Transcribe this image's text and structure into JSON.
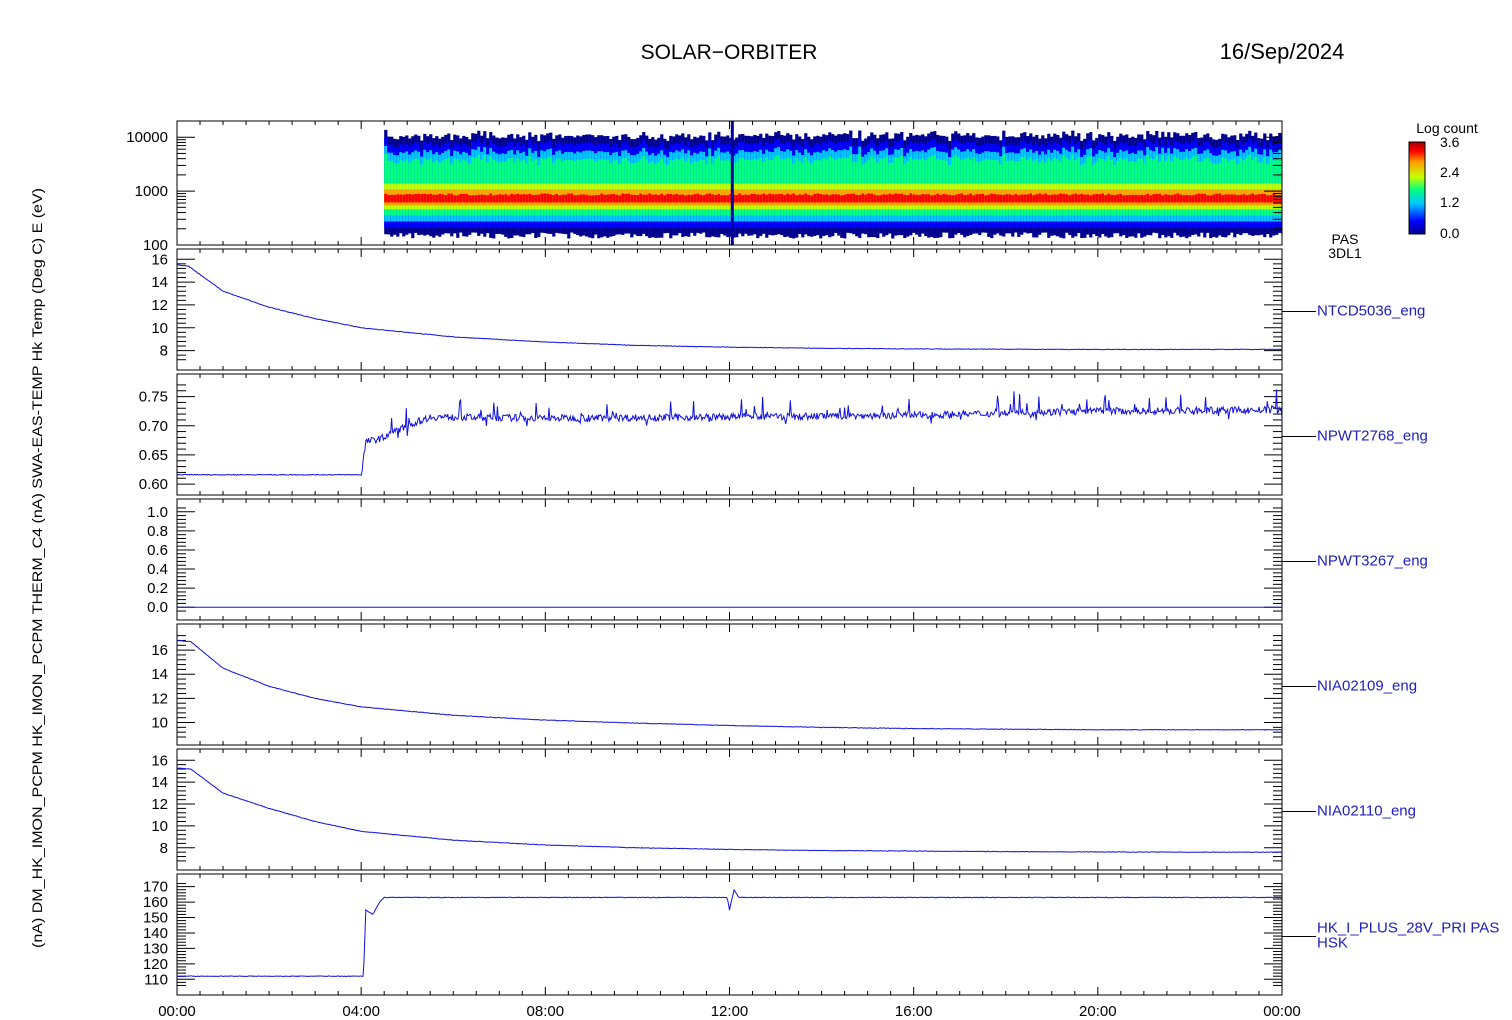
{
  "header": {
    "title": "SOLAR−ORBITER",
    "date": "16/Sep/2024"
  },
  "colors": {
    "trace": "#1010e0",
    "label": "#2020c0",
    "axis": "#000000"
  },
  "time_axis": {
    "tick_labels": [
      "00:00",
      "04:00",
      "08:00",
      "12:00",
      "16:00",
      "20:00",
      "00:00"
    ],
    "range_hours": [
      0,
      24
    ]
  },
  "colorbar": {
    "title": "Log count",
    "tick_labels": [
      "3.6",
      "2.4",
      "1.2",
      "0.0"
    ],
    "range": [
      0.0,
      3.6
    ],
    "colormap": "rainbow"
  },
  "left_axis_title": "(nA) DM_HK_IMON_PCPM HK_IMON_PCPM THERM_C4 (nA) SWA-EAS-TEMP Hk Temp (Deg C) E (eV)",
  "chart_data": [
    {
      "type": "heatmap",
      "id": "pas-3dl1",
      "side_label": [
        "PAS",
        "3DL1"
      ],
      "y_scale": "log",
      "ylim": [
        100,
        20000
      ],
      "ytick_labels": [
        "10000",
        "1000",
        "100"
      ],
      "data_start_hour": 4.5,
      "peak_energy_ev": 700,
      "zlim": [
        0.0,
        3.6
      ]
    },
    {
      "type": "line",
      "id": "ntcd5036",
      "side_label": "NTCD5036_eng",
      "ylim": [
        7.0,
        16.2
      ],
      "ytick_labels": [
        "16",
        "14",
        "12",
        "10",
        "8"
      ],
      "x": [
        0,
        0.25,
        1,
        2,
        3,
        4,
        6,
        8,
        10,
        12,
        14,
        16,
        18,
        20,
        22,
        24
      ],
      "y": [
        15.5,
        15.4,
        13.2,
        11.8,
        10.8,
        10.0,
        9.2,
        8.75,
        8.45,
        8.3,
        8.2,
        8.15,
        8.12,
        8.1,
        8.1,
        8.1
      ]
    },
    {
      "type": "line",
      "id": "npwt2768",
      "side_label": "NPWT2768_eng",
      "ylim": [
        0.595,
        0.775
      ],
      "ytick_labels": [
        "0.75",
        "0.70",
        "0.65",
        "0.60"
      ],
      "x": [
        0,
        4.0,
        4.1,
        4.5,
        5.0,
        5.5,
        8,
        12,
        16,
        20,
        24
      ],
      "y": [
        0.616,
        0.616,
        0.672,
        0.68,
        0.7,
        0.715,
        0.713,
        0.715,
        0.718,
        0.725,
        0.727
      ]
    },
    {
      "type": "line",
      "id": "npwt3267",
      "side_label": "NPWT3267_eng",
      "ylim": [
        -0.05,
        1.05
      ],
      "ytick_labels": [
        "1.0",
        "0.8",
        "0.6",
        "0.4",
        "0.2",
        "0.0"
      ],
      "x": [
        0,
        24
      ],
      "y": [
        0.0,
        0.0
      ]
    },
    {
      "type": "line",
      "id": "nia02109",
      "side_label": "NIA02109_eng",
      "ylim": [
        8.8,
        17.5
      ],
      "ytick_labels": [
        "16",
        "14",
        "12",
        "10"
      ],
      "x": [
        0,
        0.3,
        1,
        2,
        3,
        4,
        6,
        8,
        10,
        12,
        14,
        16,
        18,
        20,
        22,
        24
      ],
      "y": [
        16.8,
        16.7,
        14.5,
        13.0,
        12.0,
        11.3,
        10.6,
        10.2,
        9.95,
        9.75,
        9.6,
        9.5,
        9.45,
        9.4,
        9.4,
        9.4
      ]
    },
    {
      "type": "line",
      "id": "nia02110",
      "side_label": "NIA02110_eng",
      "ylim": [
        6.7,
        16.3
      ],
      "ytick_labels": [
        "16",
        "14",
        "12",
        "10",
        "8"
      ],
      "x": [
        0,
        0.3,
        1,
        2,
        3,
        4,
        6,
        8,
        10,
        12,
        14,
        16,
        18,
        20,
        22,
        24
      ],
      "y": [
        15.3,
        15.2,
        13.0,
        11.6,
        10.4,
        9.5,
        8.7,
        8.25,
        8.0,
        7.85,
        7.75,
        7.7,
        7.65,
        7.62,
        7.6,
        7.6
      ]
    },
    {
      "type": "line",
      "id": "hk-i-plus-28v",
      "side_label": [
        "HK_I_PLUS_28V_PRI PAS",
        "HSK"
      ],
      "ylim": [
        105,
        173
      ],
      "ytick_labels": [
        "170",
        "160",
        "150",
        "140",
        "130",
        "120",
        "110"
      ],
      "x": [
        0,
        4.05,
        4.1,
        4.25,
        4.4,
        4.5,
        11.95,
        12.0,
        12.1,
        12.2,
        24
      ],
      "y": [
        112,
        112,
        155,
        152,
        160,
        163,
        163,
        155,
        168,
        163,
        163
      ]
    }
  ]
}
